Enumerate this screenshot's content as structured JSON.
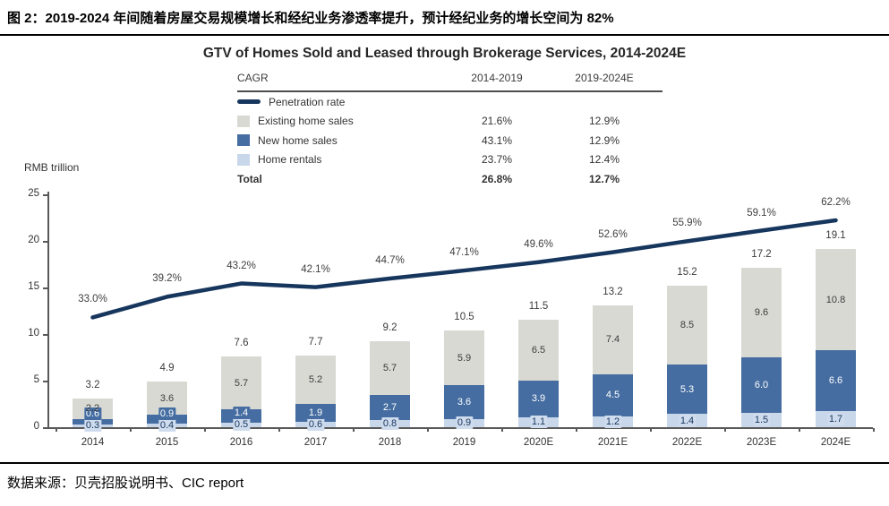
{
  "header": {
    "title": "图 2：2019-2024 年间随着房屋交易规模增长和经纪业务渗透率提升，预计经纪业务的增长空间为 82%"
  },
  "footer": {
    "source": "数据来源：贝壳招股说明书、CIC report"
  },
  "chart_data": {
    "type": "bar",
    "title": "GTV of Homes Sold and Leased through Brokerage Services, 2014-2024E",
    "ylabel": "RMB trillion",
    "ylim": [
      0,
      25
    ],
    "yticks": [
      0,
      5,
      10,
      15,
      20,
      25
    ],
    "grid": false,
    "legend_position": "top-left-table",
    "categories": [
      "2014",
      "2015",
      "2016",
      "2017",
      "2018",
      "2019",
      "2020E",
      "2021E",
      "2022E",
      "2023E",
      "2024E"
    ],
    "series": [
      {
        "name": "Home rentals",
        "color": "#c9d7ea",
        "values": [
          0.3,
          0.4,
          0.5,
          0.6,
          0.8,
          0.9,
          1.1,
          1.2,
          1.4,
          1.5,
          1.7
        ]
      },
      {
        "name": "New home sales",
        "color": "#456da1",
        "values": [
          0.6,
          0.9,
          1.4,
          1.9,
          2.7,
          3.6,
          3.9,
          4.5,
          5.3,
          6.0,
          6.6
        ]
      },
      {
        "name": "Existing home sales",
        "color": "#d9d9d4",
        "values": [
          2.2,
          3.6,
          5.7,
          5.2,
          5.7,
          5.9,
          6.5,
          7.4,
          8.5,
          9.6,
          10.8
        ]
      }
    ],
    "totals": [
      3.2,
      4.9,
      7.6,
      7.7,
      9.2,
      10.5,
      11.5,
      13.2,
      15.2,
      17.2,
      19.1
    ],
    "line": {
      "name": "Penetration rate",
      "color": "#17365d",
      "axis_max_pct": 70,
      "values_pct": [
        33.0,
        39.2,
        43.2,
        42.1,
        44.7,
        47.1,
        49.6,
        52.6,
        55.9,
        59.1,
        62.2
      ]
    },
    "legend_table": {
      "header": [
        "CAGR",
        "2014-2019",
        "2019-2024E"
      ],
      "rows": [
        {
          "swatch": "line",
          "label": "Penetration rate",
          "c1": "",
          "c2": "",
          "bold": false
        },
        {
          "swatch": "#d9d9d4",
          "label": "Existing home sales",
          "c1": "21.6%",
          "c2": "12.9%",
          "bold": false
        },
        {
          "swatch": "#456da1",
          "label": "New home sales",
          "c1": "43.1%",
          "c2": "12.9%",
          "bold": false
        },
        {
          "swatch": "#c9d7ea",
          "label": "Home rentals",
          "c1": "23.7%",
          "c2": "12.4%",
          "bold": false
        },
        {
          "swatch": "none",
          "label": "Total",
          "c1": "26.8%",
          "c2": "12.7%",
          "bold": true
        }
      ]
    }
  }
}
